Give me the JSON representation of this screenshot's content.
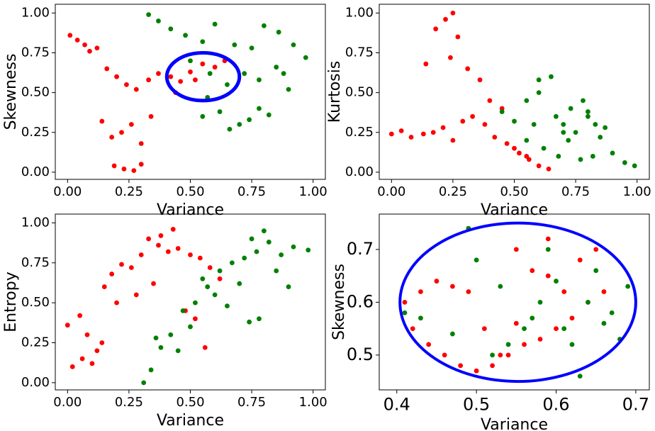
{
  "chart_data": [
    {
      "type": "scatter",
      "xlabel": "Variance",
      "ylabel": "Skewness",
      "xlim": [
        -0.05,
        1.05
      ],
      "ylim": [
        -0.045,
        1.055
      ],
      "xticks": [
        {
          "value": 0,
          "label": "0.00"
        },
        {
          "value": 0.25,
          "label": "0.25"
        },
        {
          "value": 0.5,
          "label": "0.50"
        },
        {
          "value": 0.75,
          "label": "0.75"
        },
        {
          "value": 1,
          "label": "1.00"
        }
      ],
      "yticks": [
        {
          "value": 0,
          "label": "0.00"
        },
        {
          "value": 0.25,
          "label": "0.25"
        },
        {
          "value": 0.5,
          "label": "0.50"
        },
        {
          "value": 0.75,
          "label": "0.75"
        },
        {
          "value": 1,
          "label": "1.00"
        }
      ],
      "series": [
        {
          "color": "red",
          "x": [
            0.01,
            0.04,
            0.07,
            0.09,
            0.12,
            0.16,
            0.2,
            0.24,
            0.28,
            0.33,
            0.37,
            0.42,
            0.46,
            0.5,
            0.55,
            0.6,
            0.64,
            0.14,
            0.18,
            0.22,
            0.26,
            0.3,
            0.34,
            0.19,
            0.23,
            0.27,
            0.3,
            0.44,
            0.52
          ],
          "y": [
            0.86,
            0.83,
            0.8,
            0.76,
            0.78,
            0.65,
            0.6,
            0.55,
            0.52,
            0.58,
            0.62,
            0.6,
            0.57,
            0.63,
            0.68,
            0.66,
            0.7,
            0.32,
            0.22,
            0.25,
            0.3,
            0.18,
            0.35,
            0.04,
            0.02,
            0.01,
            0.05,
            0.5,
            0.58
          ]
        },
        {
          "color": "green",
          "x": [
            0.33,
            0.37,
            0.42,
            0.48,
            0.55,
            0.6,
            0.68,
            0.75,
            0.8,
            0.86,
            0.92,
            0.97,
            0.5,
            0.58,
            0.65,
            0.72,
            0.78,
            0.85,
            0.9,
            0.55,
            0.62,
            0.7,
            0.78,
            0.82,
            0.66,
            0.74,
            0.88,
            0.57
          ],
          "y": [
            0.99,
            0.95,
            0.9,
            0.86,
            0.82,
            0.93,
            0.8,
            0.78,
            0.92,
            0.88,
            0.8,
            0.72,
            0.7,
            0.62,
            0.55,
            0.62,
            0.58,
            0.66,
            0.52,
            0.35,
            0.38,
            0.3,
            0.4,
            0.36,
            0.27,
            0.33,
            0.62,
            0.47
          ]
        }
      ],
      "ellipse": {
        "center": [
          0.552,
          0.6
        ],
        "radius": [
          0.148,
          0.15
        ],
        "color": "blue"
      }
    },
    {
      "type": "scatter",
      "xlabel": "Variance",
      "ylabel": "Kurtosis",
      "xlim": [
        -0.05,
        1.05
      ],
      "ylim": [
        -0.045,
        1.055
      ],
      "xticks": [
        {
          "value": 0,
          "label": "0.00"
        },
        {
          "value": 0.25,
          "label": "0.25"
        },
        {
          "value": 0.5,
          "label": "0.50"
        },
        {
          "value": 0.75,
          "label": "0.75"
        },
        {
          "value": 1,
          "label": "1.00"
        }
      ],
      "yticks": [
        {
          "value": 0,
          "label": "0.00"
        },
        {
          "value": 0.25,
          "label": "0.25"
        },
        {
          "value": 0.5,
          "label": "0.50"
        },
        {
          "value": 0.75,
          "label": "0.75"
        },
        {
          "value": 1,
          "label": "1.00"
        }
      ],
      "series": [
        {
          "color": "red",
          "x": [
            0.0,
            0.04,
            0.08,
            0.13,
            0.17,
            0.21,
            0.25,
            0.29,
            0.33,
            0.38,
            0.42,
            0.47,
            0.52,
            0.56,
            0.6,
            0.64,
            0.18,
            0.22,
            0.25,
            0.27,
            0.14,
            0.24,
            0.31,
            0.36,
            0.4,
            0.45,
            0.5,
            0.55
          ],
          "y": [
            0.24,
            0.26,
            0.22,
            0.24,
            0.25,
            0.28,
            0.2,
            0.32,
            0.35,
            0.3,
            0.22,
            0.18,
            0.12,
            0.08,
            0.04,
            0.02,
            0.9,
            0.96,
            1.0,
            0.85,
            0.68,
            0.72,
            0.65,
            0.58,
            0.45,
            0.4,
            0.15,
            0.1
          ]
        },
        {
          "color": "green",
          "x": [
            0.45,
            0.5,
            0.55,
            0.6,
            0.65,
            0.7,
            0.75,
            0.8,
            0.85,
            0.9,
            0.95,
            0.99,
            0.55,
            0.62,
            0.68,
            0.73,
            0.78,
            0.83,
            0.6,
            0.67,
            0.72,
            0.77,
            0.82,
            0.87,
            0.58,
            0.7,
            0.8
          ],
          "y": [
            0.38,
            0.32,
            0.45,
            0.58,
            0.6,
            0.3,
            0.25,
            0.35,
            0.22,
            0.12,
            0.06,
            0.04,
            0.2,
            0.15,
            0.1,
            0.4,
            0.45,
            0.3,
            0.5,
            0.35,
            0.2,
            0.08,
            0.1,
            0.28,
            0.3,
            0.25,
            0.38
          ]
        }
      ]
    },
    {
      "type": "scatter",
      "xlabel": "Variance",
      "ylabel": "Entropy",
      "xlim": [
        -0.05,
        1.05
      ],
      "ylim": [
        -0.045,
        1.055
      ],
      "xticks": [
        {
          "value": 0,
          "label": "0.00"
        },
        {
          "value": 0.25,
          "label": "0.25"
        },
        {
          "value": 0.5,
          "label": "0.50"
        },
        {
          "value": 0.75,
          "label": "0.75"
        },
        {
          "value": 1,
          "label": "1.00"
        }
      ],
      "yticks": [
        {
          "value": 0,
          "label": "0.00"
        },
        {
          "value": 0.25,
          "label": "0.25"
        },
        {
          "value": 0.5,
          "label": "0.50"
        },
        {
          "value": 0.75,
          "label": "0.75"
        },
        {
          "value": 1,
          "label": "1.00"
        }
      ],
      "series": [
        {
          "color": "red",
          "x": [
            0.0,
            0.02,
            0.05,
            0.08,
            0.12,
            0.15,
            0.18,
            0.22,
            0.26,
            0.3,
            0.33,
            0.37,
            0.41,
            0.45,
            0.5,
            0.54,
            0.58,
            0.62,
            0.06,
            0.1,
            0.14,
            0.2,
            0.28,
            0.35,
            0.48,
            0.52,
            0.56,
            0.38,
            0.43
          ],
          "y": [
            0.36,
            0.1,
            0.42,
            0.3,
            0.2,
            0.6,
            0.68,
            0.74,
            0.72,
            0.8,
            0.9,
            0.86,
            0.82,
            0.84,
            0.8,
            0.78,
            0.72,
            0.65,
            0.15,
            0.12,
            0.25,
            0.5,
            0.55,
            0.62,
            0.45,
            0.4,
            0.22,
            0.92,
            0.96
          ]
        },
        {
          "color": "green",
          "x": [
            0.31,
            0.34,
            0.38,
            0.42,
            0.47,
            0.52,
            0.57,
            0.62,
            0.67,
            0.72,
            0.77,
            0.82,
            0.87,
            0.92,
            0.98,
            0.55,
            0.6,
            0.65,
            0.7,
            0.75,
            0.8,
            0.85,
            0.9,
            0.45,
            0.5,
            0.36,
            0.78,
            0.74
          ],
          "y": [
            0.0,
            0.08,
            0.22,
            0.3,
            0.45,
            0.5,
            0.6,
            0.7,
            0.75,
            0.78,
            0.82,
            0.88,
            0.8,
            0.85,
            0.83,
            0.65,
            0.55,
            0.48,
            0.62,
            0.9,
            0.95,
            0.7,
            0.6,
            0.2,
            0.35,
            0.28,
            0.4,
            0.38
          ]
        }
      ]
    },
    {
      "type": "scatter",
      "xlabel": "Variance",
      "ylabel": "Skewness",
      "xlim": [
        0.378,
        0.717
      ],
      "ylim": [
        0.434,
        0.767
      ],
      "xticks": [
        0.4,
        0.5,
        0.6,
        0.7
      ],
      "yticks": [
        0.5,
        0.6,
        0.7
      ],
      "series": [
        {
          "color": "red",
          "x": [
            0.41,
            0.43,
            0.45,
            0.47,
            0.49,
            0.51,
            0.53,
            0.55,
            0.57,
            0.59,
            0.61,
            0.63,
            0.65,
            0.42,
            0.44,
            0.46,
            0.48,
            0.5,
            0.52,
            0.54,
            0.56,
            0.58,
            0.6,
            0.62,
            0.64,
            0.66,
            0.55,
            0.59
          ],
          "y": [
            0.6,
            0.62,
            0.64,
            0.63,
            0.62,
            0.55,
            0.5,
            0.56,
            0.66,
            0.65,
            0.62,
            0.68,
            0.7,
            0.55,
            0.52,
            0.5,
            0.48,
            0.47,
            0.48,
            0.5,
            0.52,
            0.53,
            0.55,
            0.57,
            0.6,
            0.62,
            0.7,
            0.72
          ]
        },
        {
          "color": "green",
          "x": [
            0.41,
            0.43,
            0.47,
            0.49,
            0.52,
            0.54,
            0.56,
            0.58,
            0.6,
            0.62,
            0.64,
            0.66,
            0.68,
            0.69,
            0.5,
            0.53,
            0.57,
            0.61,
            0.65,
            0.67,
            0.63,
            0.59
          ],
          "y": [
            0.58,
            0.57,
            0.54,
            0.74,
            0.5,
            0.52,
            0.55,
            0.6,
            0.64,
            0.52,
            0.6,
            0.56,
            0.53,
            0.63,
            0.68,
            0.63,
            0.57,
            0.55,
            0.66,
            0.58,
            0.46,
            0.7
          ]
        }
      ],
      "ellipse": {
        "center": [
          0.552,
          0.6
        ],
        "radius": [
          0.148,
          0.15
        ],
        "color": "blue"
      }
    }
  ]
}
